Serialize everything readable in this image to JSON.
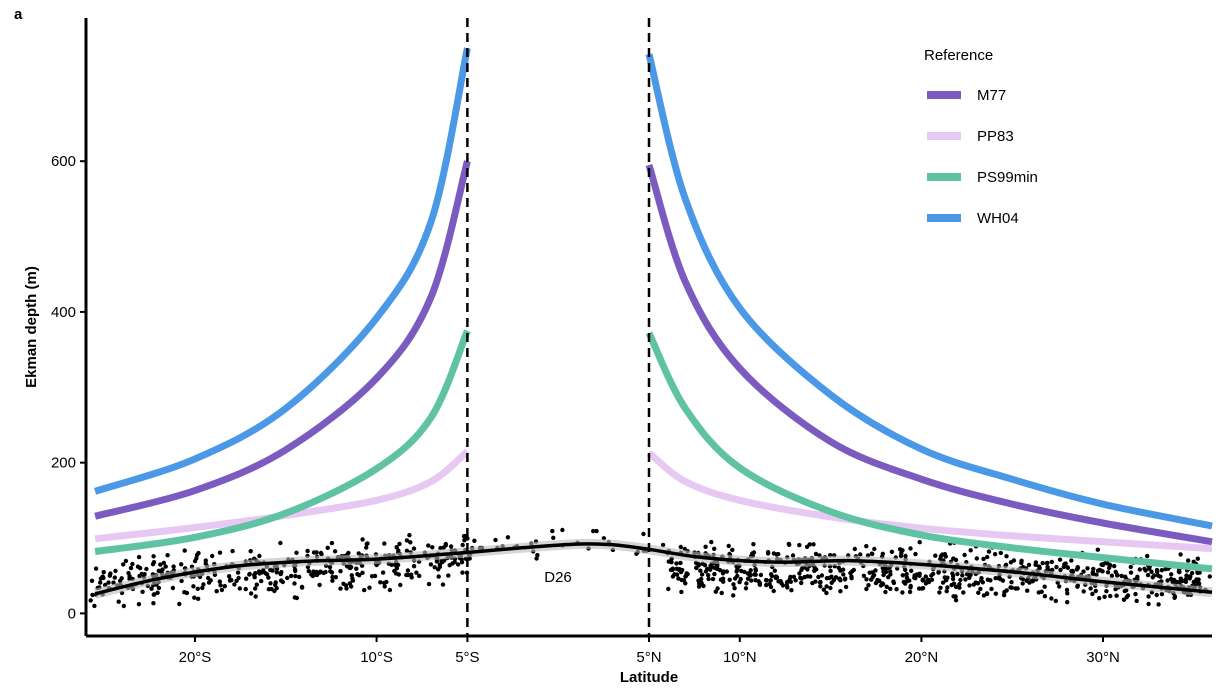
{
  "panel_label": "a",
  "chart_data": {
    "type": "line",
    "title": "",
    "xlabel": "Latitude",
    "ylabel": "Ekman depth (m)",
    "xlim": [
      -26,
      36
    ],
    "ylim": [
      -30,
      790
    ],
    "x_ticks": [
      {
        "value": -20,
        "label": "20°S"
      },
      {
        "value": -10,
        "label": "10°S"
      },
      {
        "value": -5,
        "label": "5°S"
      },
      {
        "value": 5,
        "label": "5°N"
      },
      {
        "value": 10,
        "label": "10°N"
      },
      {
        "value": 20,
        "label": "20°N"
      },
      {
        "value": 30,
        "label": "30°N"
      }
    ],
    "y_ticks": [
      {
        "value": 0,
        "label": "0"
      },
      {
        "value": 200,
        "label": "200"
      },
      {
        "value": 400,
        "label": "400"
      },
      {
        "value": 600,
        "label": "600"
      }
    ],
    "vlines": [
      -5,
      5
    ],
    "grid": false,
    "legend": {
      "title": "Reference",
      "position": "top-right"
    },
    "series": [
      {
        "name": "M77",
        "color": "#7b5bbf",
        "left": [
          [
            -25.5,
            129
          ],
          [
            -20,
            163
          ],
          [
            -15,
            217
          ],
          [
            -10,
            312
          ],
          [
            -7,
            420
          ],
          [
            -5,
            600
          ]
        ],
        "right": [
          [
            5,
            595
          ],
          [
            7,
            440
          ],
          [
            10,
            325
          ],
          [
            15,
            228
          ],
          [
            20,
            178
          ],
          [
            25,
            145
          ],
          [
            30,
            120
          ],
          [
            36,
            95
          ]
        ]
      },
      {
        "name": "PP83",
        "color": "#e6c8f3",
        "left": [
          [
            -25.5,
            99
          ],
          [
            -20,
            114
          ],
          [
            -15,
            130
          ],
          [
            -10,
            150
          ],
          [
            -7,
            175
          ],
          [
            -5,
            215
          ]
        ],
        "right": [
          [
            5,
            213
          ],
          [
            7,
            175
          ],
          [
            10,
            150
          ],
          [
            15,
            128
          ],
          [
            20,
            113
          ],
          [
            25,
            103
          ],
          [
            30,
            95
          ],
          [
            36,
            86
          ]
        ]
      },
      {
        "name": "PS99min",
        "color": "#5ec2a3",
        "left": [
          [
            -25.5,
            82
          ],
          [
            -20,
            101
          ],
          [
            -15,
            133
          ],
          [
            -10,
            192
          ],
          [
            -7,
            260
          ],
          [
            -5,
            375
          ]
        ],
        "right": [
          [
            5,
            372
          ],
          [
            7,
            272
          ],
          [
            10,
            193
          ],
          [
            15,
            135
          ],
          [
            20,
            104
          ],
          [
            25,
            87
          ],
          [
            30,
            74
          ],
          [
            36,
            59
          ]
        ]
      },
      {
        "name": "WH04",
        "color": "#4a98e6",
        "left": [
          [
            -25.5,
            162
          ],
          [
            -20,
            205
          ],
          [
            -15,
            272
          ],
          [
            -10,
            392
          ],
          [
            -7,
            520
          ],
          [
            -5,
            750
          ]
        ],
        "right": [
          [
            5,
            742
          ],
          [
            7,
            550
          ],
          [
            10,
            405
          ],
          [
            15,
            290
          ],
          [
            20,
            218
          ],
          [
            25,
            178
          ],
          [
            30,
            145
          ],
          [
            36,
            116
          ]
        ]
      }
    ],
    "fit_line": {
      "name": "D26",
      "color": "#000000",
      "points": [
        [
          -25.5,
          26
        ],
        [
          -22,
          46
        ],
        [
          -18,
          62
        ],
        [
          -14,
          69
        ],
        [
          -10,
          72
        ],
        [
          -6,
          79
        ],
        [
          -2,
          87
        ],
        [
          1,
          92
        ],
        [
          3,
          91
        ],
        [
          5,
          85
        ],
        [
          8,
          74
        ],
        [
          12,
          68
        ],
        [
          16,
          70
        ],
        [
          20,
          65
        ],
        [
          25,
          55
        ],
        [
          30,
          42
        ],
        [
          36,
          28
        ]
      ]
    },
    "scatter_clusters": [
      {
        "x": [
          -26,
          -4.5
        ],
        "y_center": [
          40,
          75
        ],
        "spread": 28,
        "count": 420
      },
      {
        "x": [
          6,
          36
        ],
        "y_center": [
          60,
          45
        ],
        "spread": 30,
        "count": 760
      },
      {
        "x": [
          -4.5,
          6
        ],
        "y_center": [
          90,
          95
        ],
        "spread": 18,
        "count": 30
      }
    ]
  }
}
